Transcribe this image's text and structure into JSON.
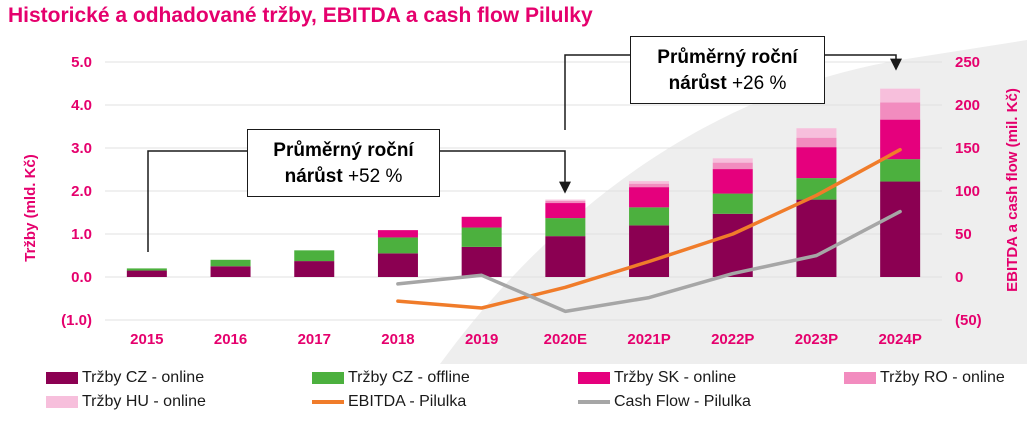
{
  "title": "Historické a odhadované tržby, EBITDA a cash flow Pilulky",
  "callouts": [
    {
      "line1": "Průměrný roční",
      "line2_bold": "nárůst",
      "line2_rest": " +52 %"
    },
    {
      "line1": "Průměrný roční",
      "line2_bold": "nárůst",
      "line2_rest": " +26 %"
    }
  ],
  "colors": {
    "brand": "#e5006d",
    "cz_online": "#8b0052",
    "cz_offline": "#4cb03e",
    "sk_online": "#e5007d",
    "ro_online": "#f28cbf",
    "hu_online": "#f7bfdc",
    "ebitda": "#f07c2a",
    "cashflow": "#a6a6a6"
  },
  "chart_data": {
    "type": "bar",
    "categories": [
      "2015",
      "2016",
      "2017",
      "2018",
      "2019",
      "2020E",
      "2021P",
      "2022P",
      "2023P",
      "2024P"
    ],
    "series": [
      {
        "name": "Tržby CZ - online",
        "axis": "left",
        "values": [
          0.15,
          0.25,
          0.37,
          0.55,
          0.7,
          0.95,
          1.2,
          1.47,
          1.8,
          2.22
        ]
      },
      {
        "name": "Tržby CZ - offline",
        "axis": "left",
        "values": [
          0.05,
          0.15,
          0.25,
          0.37,
          0.45,
          0.42,
          0.42,
          0.47,
          0.5,
          0.52
        ]
      },
      {
        "name": "Tržby SK - online",
        "axis": "left",
        "values": [
          0.0,
          0.0,
          0.0,
          0.17,
          0.25,
          0.35,
          0.47,
          0.57,
          0.72,
          0.92
        ]
      },
      {
        "name": "Tržby RO - online",
        "axis": "left",
        "values": [
          0.0,
          0.0,
          0.0,
          0.0,
          0.0,
          0.05,
          0.08,
          0.15,
          0.22,
          0.4
        ]
      },
      {
        "name": "Tržby HU - online",
        "axis": "left",
        "values": [
          0.0,
          0.0,
          0.0,
          0.0,
          0.0,
          0.03,
          0.06,
          0.1,
          0.22,
          0.32
        ]
      },
      {
        "name": "EBITDA - Pilulka",
        "type": "line",
        "axis": "right",
        "values": [
          null,
          null,
          null,
          -28,
          -36,
          -12,
          18,
          50,
          95,
          148
        ]
      },
      {
        "name": "Cash Flow - Pilulka",
        "type": "line",
        "axis": "right",
        "values": [
          null,
          null,
          null,
          -8,
          2,
          -40,
          -24,
          4,
          25,
          76
        ]
      }
    ],
    "ylabel": "Tržby (mld. Kč)",
    "y2label": "EBITDA a cash flow (mil. Kč)",
    "ylim": [
      -1.0,
      5.0
    ],
    "y2lim": [
      -50,
      250
    ],
    "yticks": [
      "(1.0)",
      "0.0",
      "1.0",
      "2.0",
      "3.0",
      "4.0",
      "5.0"
    ],
    "y2ticks": [
      "(50)",
      "0",
      "50",
      "100",
      "150",
      "200",
      "250"
    ],
    "grid": true,
    "legend_position": "bottom"
  }
}
